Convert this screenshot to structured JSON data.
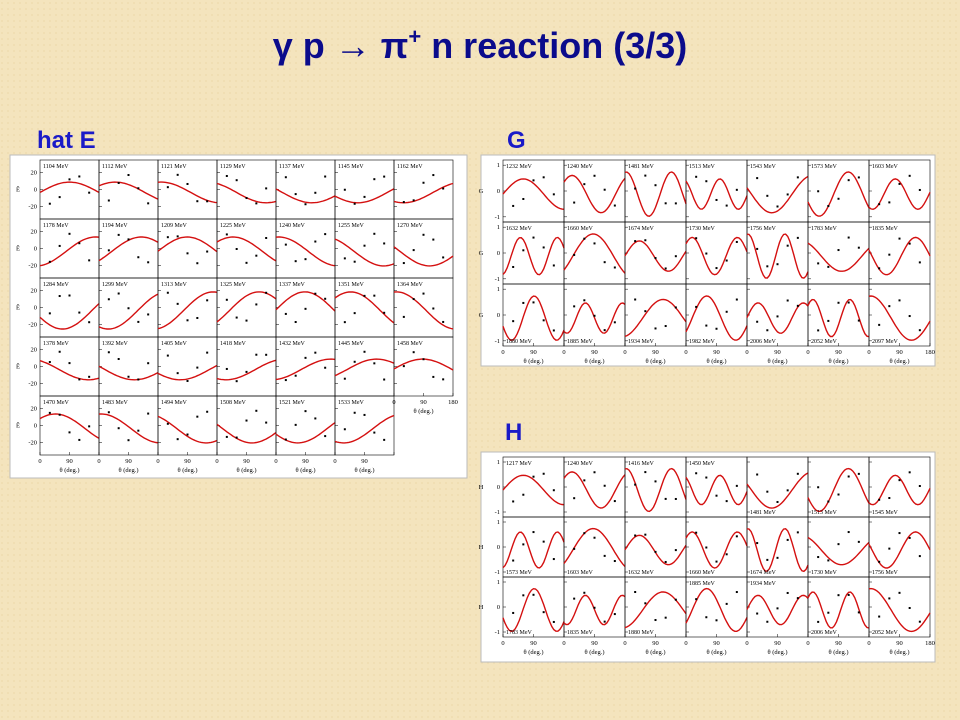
{
  "header": {
    "title_pre": "γ p → π",
    "title_sup": "+",
    "title_post": " n reaction (3/3)"
  },
  "figures": [
    {
      "label": "hat E",
      "ylabel": "Ê",
      "xlabel": "θ (deg.)",
      "ylim": [
        -35,
        35
      ],
      "yticks": [
        20,
        0,
        -20
      ],
      "xlim": [
        0,
        180
      ],
      "xticks": [
        0,
        90,
        180
      ],
      "energies": [
        "1104 MeV",
        "1112 MeV",
        "1121 MeV",
        "1129 MeV",
        "1137 MeV",
        "1145 MeV",
        "1162 MeV",
        "1178 MeV",
        "1194 MeV",
        "1209 MeV",
        "1225 MeV",
        "1240 MeV",
        "1255 MeV",
        "1270 MeV",
        "1284 MeV",
        "1299 MeV",
        "1313 MeV",
        "1325 MeV",
        "1337 MeV",
        "1351 MeV",
        "1364 MeV",
        "1378 MeV",
        "1392 MeV",
        "1405 MeV",
        "1418 MeV",
        "1432 MeV",
        "1445 MeV",
        "1458 MeV",
        "1470 MeV",
        "1483 MeV",
        "1494 MeV",
        "1508 MeV",
        "1521 MeV",
        "1533 MeV"
      ]
    },
    {
      "label": "G",
      "ylabel": "G",
      "xlabel": "θ (deg.)",
      "ylim": [
        -1.2,
        1.2
      ],
      "yticks": [
        1,
        0,
        -1
      ],
      "xlim": [
        0,
        180
      ],
      "xticks": [
        0,
        90,
        180
      ],
      "energies": [
        "1232 MeV",
        "1240 MeV",
        "1481 MeV",
        "1513 MeV",
        "1543 MeV",
        "1573 MeV",
        "1603 MeV",
        "1632 MeV",
        "1660 MeV",
        "1674 MeV",
        "1730 MeV",
        "1756 MeV",
        "1783 MeV",
        "1835 MeV",
        "1880 MeV",
        "1885 MeV",
        "1934 MeV",
        "1982 MeV",
        "2006 MeV",
        "2052 MeV",
        "2097 MeV"
      ]
    },
    {
      "label": "H",
      "ylabel": "H",
      "xlabel": "θ (deg.)",
      "ylim": [
        -1.2,
        1.2
      ],
      "yticks": [
        1,
        0,
        -1
      ],
      "xlim": [
        0,
        180
      ],
      "xticks": [
        0,
        90,
        180
      ],
      "energies": [
        "1217 MeV",
        "1240 MeV",
        "1416 MeV",
        "1450 MeV",
        "1481 MeV",
        "1513 MeV",
        "1545 MeV",
        "1573 MeV",
        "1603 MeV",
        "1632 MeV",
        "1660 MeV",
        "1674 MeV",
        "1730 MeV",
        "1756 MeV",
        "1783 MeV",
        "1835 MeV",
        "1880 MeV",
        "1885 MeV",
        "1934 MeV",
        "2006 MeV",
        "2052 MeV"
      ]
    }
  ]
}
